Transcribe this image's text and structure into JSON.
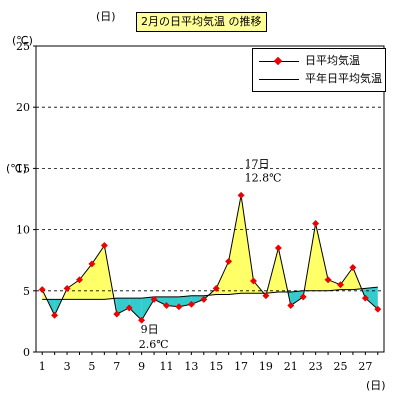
{
  "header": {
    "top_unit": "(日)",
    "y_unit": "(℃)",
    "x_unit": "(日)"
  },
  "chart_data": {
    "type": "line",
    "title": "2月の日平均気温 の推移",
    "xlabel": "(日)",
    "ylabel": "(℃)",
    "x": [
      1,
      2,
      3,
      4,
      5,
      6,
      7,
      8,
      9,
      10,
      11,
      12,
      13,
      14,
      15,
      16,
      17,
      18,
      19,
      20,
      21,
      22,
      23,
      24,
      25,
      26,
      27,
      28
    ],
    "xlim": [
      0.5,
      28.5
    ],
    "ylim": [
      0,
      25
    ],
    "x_ticks": [
      1,
      3,
      5,
      7,
      9,
      11,
      13,
      15,
      17,
      19,
      21,
      23,
      25,
      27
    ],
    "y_ticks": [
      0,
      5,
      10,
      15,
      20,
      25
    ],
    "grid_y_dashed": [
      5,
      10,
      15,
      20
    ],
    "legend_position": "top-right",
    "series": [
      {
        "name": "日平均気温",
        "values": [
          5.1,
          3.0,
          5.2,
          5.9,
          7.2,
          8.7,
          3.1,
          3.6,
          2.6,
          4.3,
          3.8,
          3.7,
          3.9,
          4.3,
          5.2,
          7.4,
          12.8,
          5.8,
          4.6,
          8.5,
          3.8,
          4.5,
          10.5,
          5.9,
          5.5,
          6.9,
          4.4,
          3.5
        ],
        "marker": "diamond",
        "color": "#ee0000"
      },
      {
        "name": "平年日平均気温",
        "values": [
          4.3,
          4.3,
          4.3,
          4.3,
          4.3,
          4.3,
          4.4,
          4.4,
          4.4,
          4.5,
          4.5,
          4.5,
          4.6,
          4.6,
          4.7,
          4.7,
          4.8,
          4.8,
          4.8,
          4.9,
          4.9,
          5.0,
          5.0,
          5.0,
          5.1,
          5.1,
          5.2,
          5.3
        ],
        "color": "#000000"
      }
    ],
    "fill_above_color": "#ffff66",
    "fill_below_color": "#33cccc",
    "annotations": [
      {
        "day": 17,
        "line1": "17日",
        "line2": "12.8℃",
        "placement": "above"
      },
      {
        "day": 9,
        "line1": "9日",
        "line2": "2.6℃",
        "placement": "below"
      }
    ]
  }
}
